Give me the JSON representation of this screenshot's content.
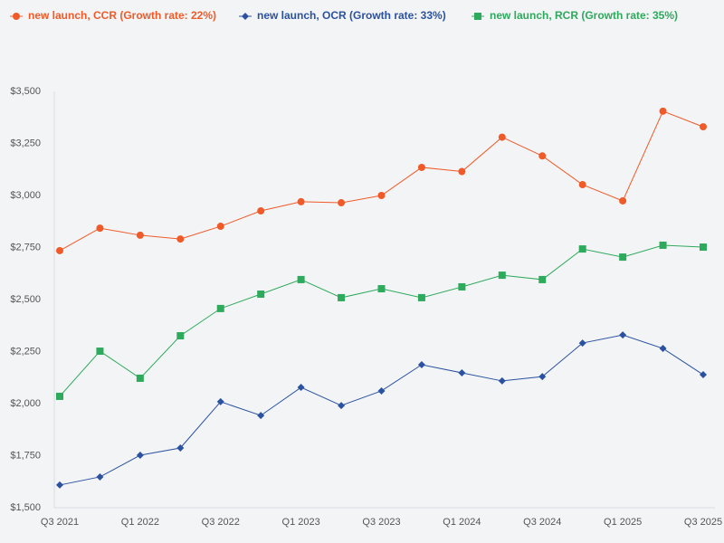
{
  "chart_data": {
    "type": "line",
    "categories": [
      "Q3 2021",
      null,
      "Q1 2022",
      null,
      "Q3 2022",
      null,
      "Q1 2023",
      null,
      "Q3 2023",
      null,
      "Q1 2024",
      null,
      "Q3 2024",
      null,
      "Q1 2025",
      null,
      "Q3 2025"
    ],
    "series": [
      {
        "name": "new launch, CCR (Growth rate: 22%)",
        "color": "#f05a28",
        "marker": "circle",
        "values": [
          2735,
          2843,
          2809,
          2791,
          2852,
          2926,
          2970,
          2965,
          3000,
          3135,
          3115,
          3280,
          3190,
          3052,
          2974,
          3405,
          3330
        ]
      },
      {
        "name": "new launch, OCR (Growth rate: 33%)",
        "color": "#2a52a0",
        "marker": "diamond",
        "values": [
          1609,
          1648,
          1752,
          1787,
          2009,
          1943,
          2078,
          1991,
          2061,
          2187,
          2148,
          2109,
          2130,
          2291,
          2330,
          2265,
          2139
        ]
      },
      {
        "name": "new launch, RCR (Growth rate: 35%)",
        "color": "#2eaa5c",
        "marker": "square",
        "values": [
          2035,
          2252,
          2122,
          2326,
          2457,
          2526,
          2596,
          2509,
          2552,
          2509,
          2561,
          2617,
          2596,
          2743,
          2704,
          2761,
          2752
        ]
      }
    ],
    "ylim": [
      1500,
      3500
    ],
    "yticks": [
      {
        "value": 1500,
        "label": "$1,500"
      },
      {
        "value": 1750,
        "label": "$1,750"
      },
      {
        "value": 2000,
        "label": "$2,000"
      },
      {
        "value": 2250,
        "label": "$2,250"
      },
      {
        "value": 2500,
        "label": "$2,500"
      },
      {
        "value": 2750,
        "label": "$2,750"
      },
      {
        "value": 3000,
        "label": "$3,000"
      },
      {
        "value": 3250,
        "label": "$3,250"
      },
      {
        "value": 3500,
        "label": "$3,500"
      }
    ],
    "grid": false,
    "legend": "top"
  }
}
